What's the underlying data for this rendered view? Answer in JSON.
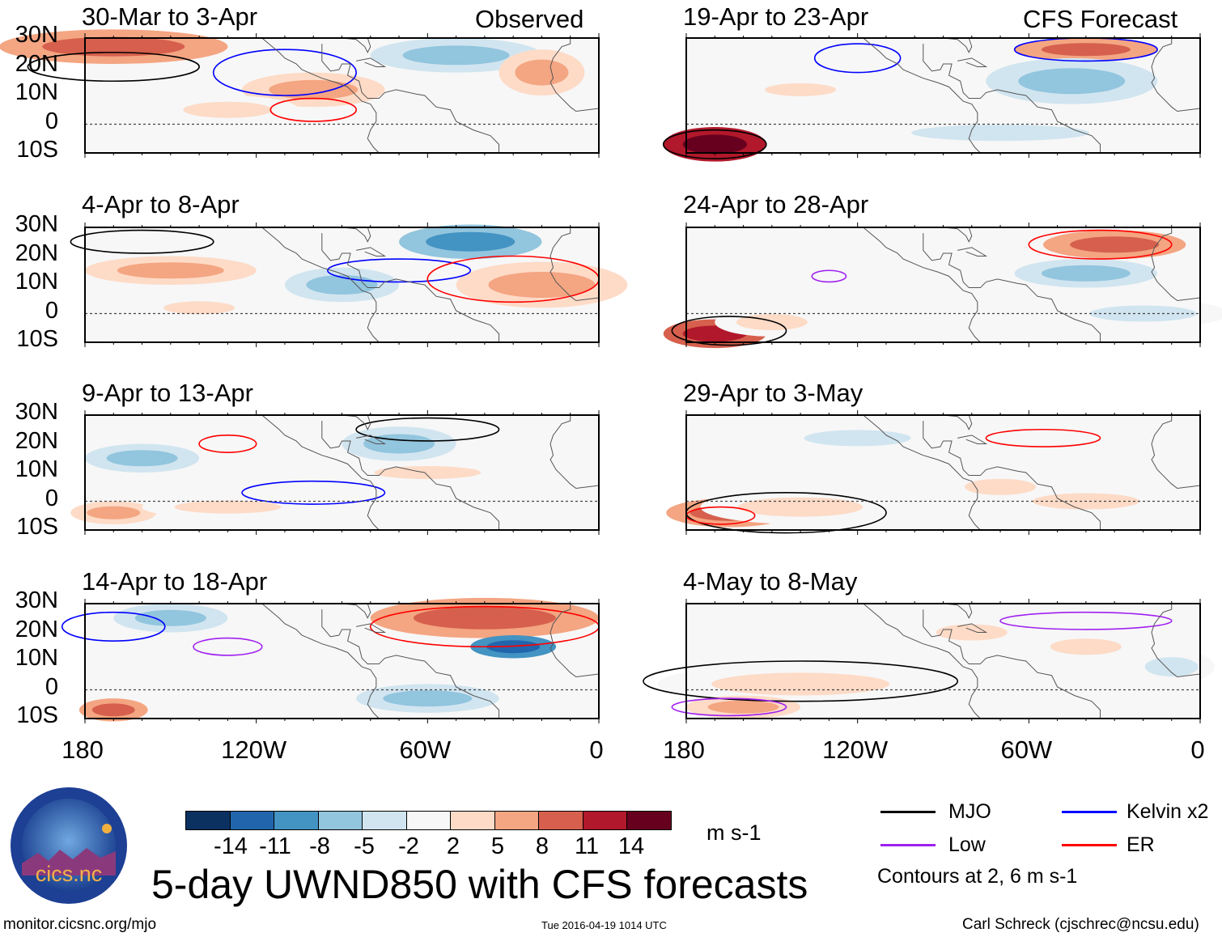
{
  "header": {
    "observed_label": "Observed",
    "forecast_label": "CFS Forecast"
  },
  "panels_left": [
    {
      "title": "30-Mar to 3-Apr"
    },
    {
      "title": "4-Apr to 8-Apr"
    },
    {
      "title": "9-Apr to 13-Apr"
    },
    {
      "title": "14-Apr to 18-Apr"
    }
  ],
  "panels_right": [
    {
      "title": "19-Apr to 23-Apr"
    },
    {
      "title": "24-Apr to 28-Apr"
    },
    {
      "title": "29-Apr to 3-May"
    },
    {
      "title": "4-May to 8-May"
    }
  ],
  "lat_labels": [
    "30N",
    "20N",
    "10N",
    "0",
    "10S"
  ],
  "lon_labels": [
    "180",
    "120W",
    "60W",
    "0"
  ],
  "colorbar": {
    "colors": [
      "#0b3160",
      "#2166ac",
      "#4393c3",
      "#92c5de",
      "#d1e5f0",
      "#f7f7f7",
      "#fddbc7",
      "#f4a582",
      "#d6604d",
      "#b2182b",
      "#67001f"
    ],
    "labels": [
      "-14",
      "-11",
      "-8",
      "-5",
      "-2",
      "2",
      "5",
      "8",
      "11",
      "14"
    ],
    "units": "m s-1"
  },
  "legend": {
    "items": [
      {
        "label": "MJO",
        "color": "#000000"
      },
      {
        "label": "Kelvin x2",
        "color": "#0000ff"
      },
      {
        "label": "Low",
        "color": "#a020f0"
      },
      {
        "label": "ER",
        "color": "#ff0000"
      }
    ],
    "contours_note": "Contours at 2, 6 m s-1"
  },
  "main_title": "5-day UWND850 with CFS forecasts",
  "logo": {
    "text": "cics.nc",
    "ring_text": "Cooperative Institute for Climate and Satellites"
  },
  "footer": {
    "url": "monitor.cicsnc.org/mjo",
    "timestamp": "Tue 2016-04-19 1014 UTC",
    "credit": "Carl Schreck (cjschrec@ncsu.edu)"
  }
}
